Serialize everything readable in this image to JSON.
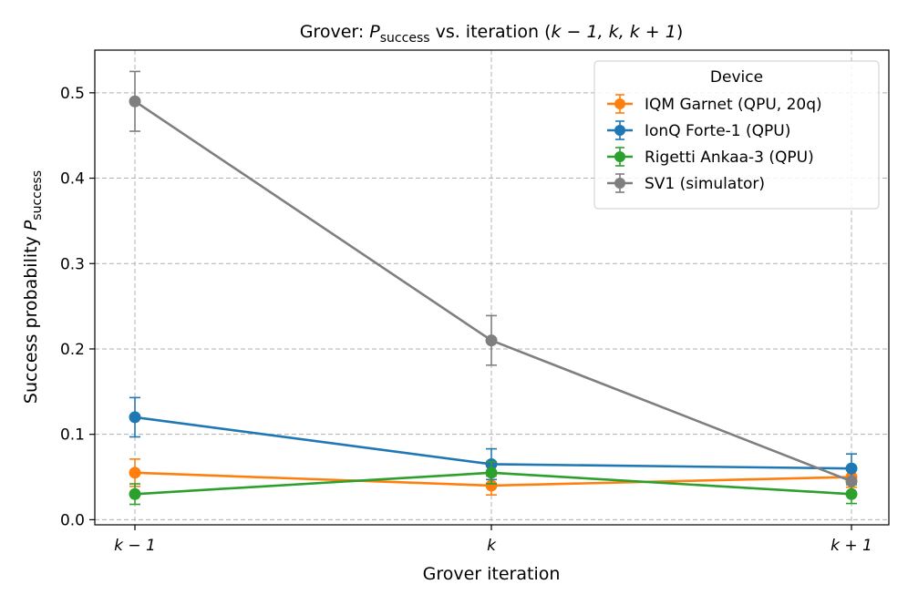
{
  "chart_data": {
    "type": "line",
    "title": {
      "prefix": "Grover: ",
      "var_main": "P",
      "var_sub": "success",
      "suffix_text": " vs. iteration (",
      "math_terms": "k − 1, k, k + 1",
      "close": ")"
    },
    "xlabel": "Grover iteration",
    "ylabel": {
      "text": "Success probability ",
      "var_main": "P",
      "var_sub": "success"
    },
    "categories": [
      "k − 1",
      "k",
      "k + 1"
    ],
    "ylim": [
      -0.006,
      0.55
    ],
    "yticks": [
      0.0,
      0.1,
      0.2,
      0.3,
      0.4,
      0.5
    ],
    "ytick_labels": [
      "0.0",
      "0.1",
      "0.2",
      "0.3",
      "0.4",
      "0.5"
    ],
    "grid": true,
    "legend": {
      "title": "Device",
      "placement": "top-right"
    },
    "series": [
      {
        "name": "IQM Garnet (QPU, 20q)",
        "color": "#ff7f0e",
        "values": [
          0.055,
          0.04,
          0.05
        ],
        "errors": [
          0.016,
          0.011,
          0.012
        ]
      },
      {
        "name": "IonQ Forte-1 (QPU)",
        "color": "#1f77b4",
        "values": [
          0.12,
          0.065,
          0.06
        ],
        "errors": [
          0.023,
          0.018,
          0.017
        ]
      },
      {
        "name": "Rigetti Ankaa-3 (QPU)",
        "color": "#2ca02c",
        "values": [
          0.03,
          0.055,
          0.03
        ],
        "errors": [
          0.012,
          0.013,
          0.011
        ]
      },
      {
        "name": "SV1 (simulator)",
        "color": "#7f7f7f",
        "values": [
          0.49,
          0.21,
          0.045
        ],
        "errors": [
          0.035,
          0.029,
          0.0
        ]
      }
    ]
  }
}
